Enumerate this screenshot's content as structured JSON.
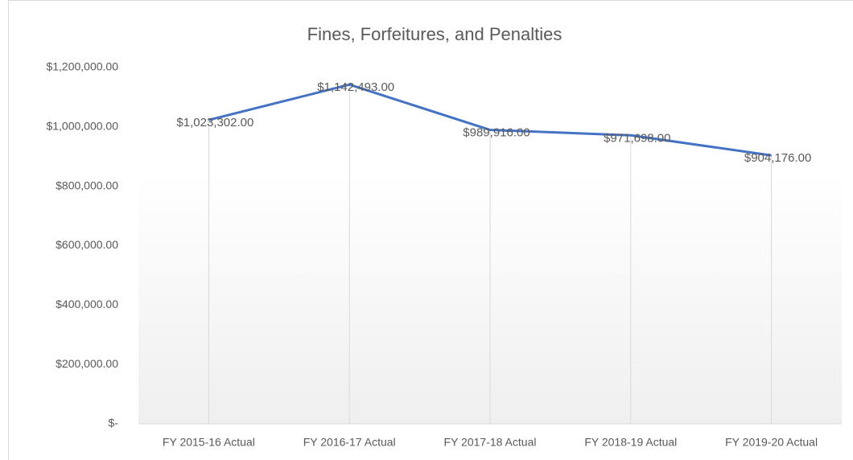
{
  "chart_data": {
    "type": "line",
    "title": "Fines, Forfeitures, and Penalties",
    "categories": [
      "FY 2015-16 Actual",
      "FY 2016-17 Actual",
      "FY 2017-18 Actual",
      "FY 2018-19 Actual",
      "FY 2019-20 Actual"
    ],
    "values": [
      1023302,
      1142493,
      989916,
      971698,
      904176
    ],
    "value_labels": [
      "$1,023,302.00",
      "$1,142,493.00",
      "$989,916.00",
      "$971,698.00",
      "$904,176.00"
    ],
    "color": "#4472c4",
    "ylim": [
      0,
      1200000
    ],
    "yticks": [
      {
        "value": 0,
        "label": "$-"
      },
      {
        "value": 200000,
        "label": "$200,000.00"
      },
      {
        "value": 400000,
        "label": "$400,000.00"
      },
      {
        "value": 600000,
        "label": "$600,000.00"
      },
      {
        "value": 800000,
        "label": "$800,000.00"
      },
      {
        "value": 1000000,
        "label": "$1,000,000.00"
      },
      {
        "value": 1200000,
        "label": "$1,200,000.00"
      }
    ],
    "drop_lines": true
  }
}
